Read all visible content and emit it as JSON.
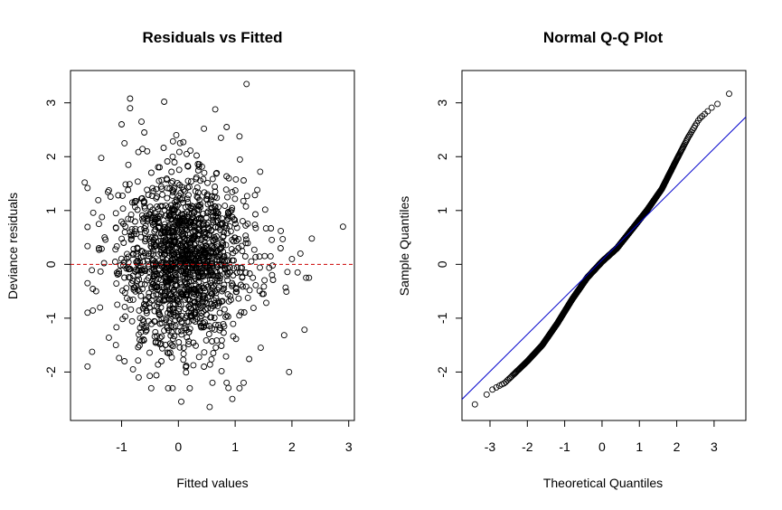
{
  "chart_data": [
    {
      "type": "scatter",
      "title": "Residuals vs Fitted",
      "xlabel": "Fitted values",
      "ylabel": "Deviance residuals",
      "xlim": [
        -1.9,
        3.1
      ],
      "ylim": [
        -2.9,
        3.6
      ],
      "xticks": [
        -1,
        0,
        1,
        2,
        3
      ],
      "yticks": [
        -2,
        -1,
        0,
        1,
        2,
        3
      ],
      "reference_line": {
        "type": "horizontal",
        "y": 0,
        "color": "#cc0000",
        "style": "dashed"
      },
      "n_points": 1500,
      "points": [
        [
          -1.65,
          1.52
        ],
        [
          -1.4,
          0.75
        ],
        [
          -1.1,
          0.95
        ],
        [
          -1.1,
          -1.5
        ],
        [
          -1.0,
          2.6
        ],
        [
          -0.95,
          2.25
        ],
        [
          -0.85,
          3.08
        ],
        [
          -0.85,
          2.9
        ],
        [
          -0.8,
          -1.95
        ],
        [
          -0.65,
          2.65
        ],
        [
          -0.6,
          2.45
        ],
        [
          -0.55,
          2.1
        ],
        [
          -0.25,
          3.02
        ],
        [
          -0.1,
          2.0
        ],
        [
          0.45,
          2.52
        ],
        [
          0.65,
          2.88
        ],
        [
          0.75,
          2.35
        ],
        [
          0.85,
          2.55
        ],
        [
          1.2,
          3.35
        ],
        [
          0.05,
          -2.55
        ],
        [
          0.55,
          -2.65
        ],
        [
          0.95,
          -2.5
        ],
        [
          1.15,
          -2.2
        ],
        [
          0.85,
          -2.2
        ],
        [
          0.6,
          -2.2
        ],
        [
          1.45,
          -1.55
        ],
        [
          1.95,
          -2.0
        ],
        [
          2.25,
          -0.25
        ],
        [
          2.3,
          -0.25
        ],
        [
          2.35,
          0.48
        ],
        [
          2.9,
          0.7
        ],
        [
          2.15,
          0.2
        ],
        [
          2.1,
          -0.15
        ],
        [
          1.8,
          0.3
        ],
        [
          2.0,
          0.1
        ],
        [
          1.65,
          -0.2
        ],
        [
          1.5,
          -0.55
        ],
        [
          -1.45,
          -0.5
        ],
        [
          -1.4,
          0.3
        ],
        [
          -1.3,
          0.5
        ],
        [
          -0.7,
          -2.1
        ],
        [
          -0.95,
          -1.8
        ],
        [
          0.2,
          -2.3
        ],
        [
          0.45,
          -1.9
        ],
        [
          -0.3,
          -1.8
        ]
      ]
    },
    {
      "type": "scatter",
      "title": "Normal Q-Q Plot",
      "xlabel": "Theoretical Quantiles",
      "ylabel": "Sample Quantiles",
      "xlim": [
        -3.75,
        3.85
      ],
      "ylim": [
        -2.9,
        3.6
      ],
      "xticks": [
        -3,
        -2,
        -1,
        0,
        1,
        2,
        3
      ],
      "yticks": [
        -2,
        -1,
        0,
        1,
        2,
        3
      ],
      "reference_line": {
        "type": "abline",
        "intercept": 0.08,
        "slope": 0.69,
        "color": "#0000cc"
      },
      "n_points": 1500,
      "qq_curve": [
        [
          -3.5,
          -2.65
        ],
        [
          -3.2,
          -2.5
        ],
        [
          -3.0,
          -2.35
        ],
        [
          -2.6,
          -2.2
        ],
        [
          -2.3,
          -2.0
        ],
        [
          -2.0,
          -1.8
        ],
        [
          -1.6,
          -1.5
        ],
        [
          -1.2,
          -1.1
        ],
        [
          -0.8,
          -0.65
        ],
        [
          -0.4,
          -0.25
        ],
        [
          0.0,
          0.05
        ],
        [
          0.4,
          0.3
        ],
        [
          0.8,
          0.65
        ],
        [
          1.2,
          1.0
        ],
        [
          1.6,
          1.4
        ],
        [
          2.0,
          1.95
        ],
        [
          2.3,
          2.35
        ],
        [
          2.6,
          2.7
        ],
        [
          3.0,
          2.95
        ],
        [
          3.35,
          3.07
        ],
        [
          3.5,
          3.35
        ]
      ]
    }
  ]
}
